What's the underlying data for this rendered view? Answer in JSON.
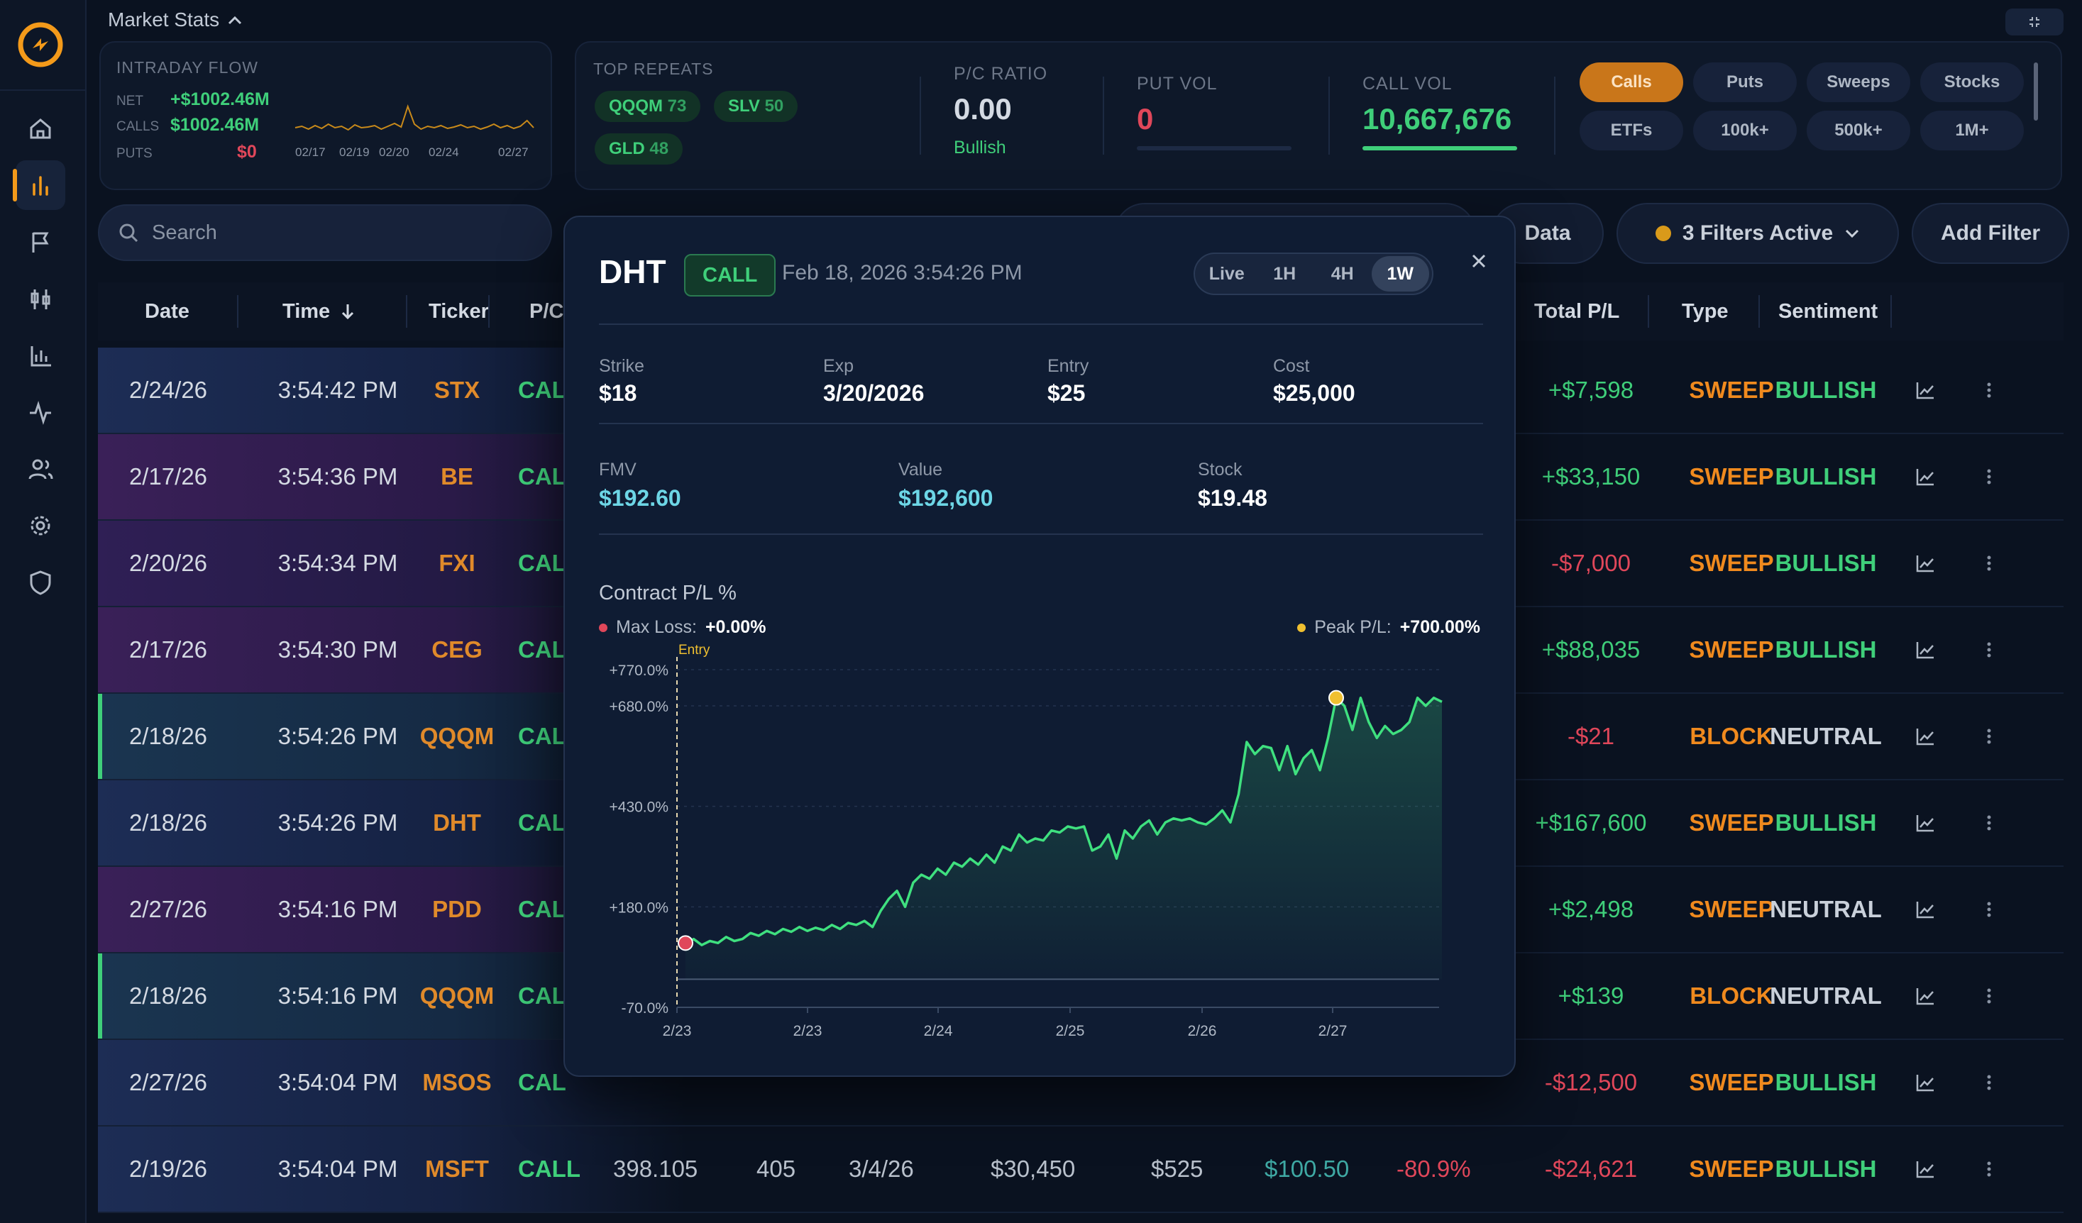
{
  "nav": {
    "items": [
      {
        "icon": "home-icon"
      },
      {
        "icon": "bar-chart-icon",
        "active": true
      },
      {
        "icon": "flag-icon"
      },
      {
        "icon": "candlestick-icon"
      },
      {
        "icon": "column-chart-icon"
      },
      {
        "icon": "activity-icon"
      },
      {
        "icon": "users-icon"
      },
      {
        "icon": "settings-icon"
      },
      {
        "icon": "shield-icon"
      }
    ]
  },
  "market_stats": {
    "title": "Market Stats",
    "intraday": {
      "title": "INTRADAY FLOW",
      "net_label": "NET",
      "net_value": "+$1002.46M",
      "calls_label": "CALLS",
      "calls_value": "$1002.46M",
      "puts_label": "PUTS",
      "puts_value": "$0",
      "spark_dates": [
        "02/17",
        "02/19",
        "02/20",
        "02/24",
        "02/27"
      ]
    },
    "top_repeats": {
      "title": "TOP REPEATS",
      "items": [
        {
          "ticker": "QQQM",
          "count": "73"
        },
        {
          "ticker": "SLV",
          "count": "50"
        },
        {
          "ticker": "GLD",
          "count": "48"
        }
      ]
    },
    "pc_ratio": {
      "label": "P/C RATIO",
      "value": "0.00",
      "sentiment": "Bullish"
    },
    "put_vol": {
      "label": "PUT VOL",
      "value": "0",
      "fill": 0
    },
    "call_vol": {
      "label": "CALL VOL",
      "value": "10,667,676",
      "fill": 1
    },
    "filters": [
      "Calls",
      "Puts",
      "Sweeps",
      "Stocks",
      "ETFs",
      "100k+",
      "500k+",
      "1M+"
    ],
    "active_filter": "Calls"
  },
  "toolbar": {
    "search_placeholder": "Search",
    "data_label": "Data",
    "filters_active_label": "3 Filters Active",
    "add_filter_label": "Add Filter"
  },
  "table": {
    "headers": {
      "date": "Date",
      "time": "Time",
      "ticker": "Ticker",
      "pc": "P/C",
      "total_pl": "Total P/L",
      "type": "Type",
      "sentiment": "Sentiment"
    },
    "rows": [
      {
        "date": "2/24/26",
        "time": "3:54:42 PM",
        "ticker": "STX",
        "pc": "CAL",
        "total_pl": "+$7,598",
        "pl_sign": "pos",
        "type": "SWEEP",
        "sentiment": "BULLISH"
      },
      {
        "date": "2/17/26",
        "time": "3:54:36 PM",
        "ticker": "BE",
        "pc": "CAL",
        "total_pl": "+$33,150",
        "pl_sign": "pos",
        "type": "SWEEP",
        "sentiment": "BULLISH"
      },
      {
        "date": "2/20/26",
        "time": "3:54:34 PM",
        "ticker": "FXI",
        "pc": "CAL",
        "total_pl": "-$7,000",
        "pl_sign": "neg",
        "type": "SWEEP",
        "sentiment": "BULLISH"
      },
      {
        "date": "2/17/26",
        "time": "3:54:30 PM",
        "ticker": "CEG",
        "pc": "CAL",
        "total_pl": "+$88,035",
        "pl_sign": "pos",
        "type": "SWEEP",
        "sentiment": "BULLISH"
      },
      {
        "date": "2/18/26",
        "time": "3:54:26 PM",
        "ticker": "QQQM",
        "pc": "CAL",
        "total_pl": "-$21",
        "pl_sign": "neg",
        "type": "BLOCK",
        "sentiment": "NEUTRAL"
      },
      {
        "date": "2/18/26",
        "time": "3:54:26 PM",
        "ticker": "DHT",
        "pc": "CAL",
        "total_pl": "+$167,600",
        "pl_sign": "pos",
        "type": "SWEEP",
        "sentiment": "BULLISH"
      },
      {
        "date": "2/27/26",
        "time": "3:54:16 PM",
        "ticker": "PDD",
        "pc": "CAL",
        "total_pl": "+$2,498",
        "pl_sign": "pos",
        "type": "SWEEP",
        "sentiment": "NEUTRAL"
      },
      {
        "date": "2/18/26",
        "time": "3:54:16 PM",
        "ticker": "QQQM",
        "pc": "CAL",
        "total_pl": "+$139",
        "pl_sign": "pos",
        "type": "BLOCK",
        "sentiment": "NEUTRAL"
      },
      {
        "date": "2/27/26",
        "time": "3:54:04 PM",
        "ticker": "MSOS",
        "pc": "CAL",
        "total_pl": "-$12,500",
        "pl_sign": "neg",
        "type": "SWEEP",
        "sentiment": "BULLISH"
      },
      {
        "date": "2/19/26",
        "time": "3:54:04 PM",
        "ticker": "MSFT",
        "pc": "CALL",
        "spot": "398.105",
        "strike": "405",
        "exp": "3/4/26",
        "premium": "$30,450",
        "entry": "$525",
        "fmv": "$100.50",
        "pct": "-80.9%",
        "total_pl": "-$24,621",
        "pl_sign": "neg",
        "type": "SWEEP",
        "sentiment": "BULLISH"
      }
    ]
  },
  "modal": {
    "ticker": "DHT",
    "badge": "CALL",
    "datetime": "Feb 18, 2026 3:54:26 PM",
    "timeframes": [
      "Live",
      "1H",
      "4H",
      "1W"
    ],
    "active_timeframe": "1W",
    "details": {
      "strike_label": "Strike",
      "strike": "$18",
      "exp_label": "Exp",
      "exp": "3/20/2026",
      "entry_label": "Entry",
      "entry": "$25",
      "cost_label": "Cost",
      "cost": "$25,000",
      "fmv_label": "FMV",
      "fmv": "$192.60",
      "value_label": "Value",
      "value": "$192,600",
      "stock_label": "Stock",
      "stock": "$19.48"
    },
    "chart_title": "Contract P/L %",
    "max_loss_label": "Max Loss:",
    "max_loss": "+0.00%",
    "peak_label": "Peak P/L:",
    "peak": "+700.00%"
  },
  "chart_data": {
    "type": "line",
    "title": "Contract P/L %",
    "ylim": [
      -70,
      770
    ],
    "y_ticks": [
      "+770.0%",
      "+680.0%",
      "+430.0%",
      "+180.0%",
      "-70.0%"
    ],
    "y_tick_values": [
      770,
      680,
      430,
      180,
      -70
    ],
    "x_ticks": [
      "2/23",
      "2/23",
      "2/24",
      "2/25",
      "2/26",
      "2/27"
    ],
    "entry_label": "Entry",
    "colors": {
      "line": "#3fe07f",
      "entry_point": "#e0475a",
      "peak_point": "#f0c030",
      "entry_line": "#f0c030"
    },
    "series": [
      {
        "values": [
          90,
          100,
          85,
          95,
          90,
          105,
          95,
          100,
          115,
          108,
          120,
          112,
          125,
          118,
          130,
          120,
          128,
          122,
          135,
          125,
          140,
          135,
          145,
          130,
          170,
          200,
          220,
          180,
          240,
          260,
          250,
          275,
          260,
          290,
          280,
          300,
          285,
          310,
          290,
          330,
          320,
          360,
          340,
          350,
          345,
          370,
          365,
          380,
          375,
          380,
          320,
          330,
          360,
          300,
          370,
          350,
          380,
          395,
          360,
          390,
          400,
          395,
          400,
          390,
          385,
          400,
          420,
          390,
          460,
          590,
          560,
          580,
          575,
          520,
          580,
          510,
          550,
          570,
          520,
          600,
          700,
          680,
          620,
          700,
          640,
          600,
          630,
          610,
          620,
          640,
          700,
          680,
          700,
          690
        ]
      }
    ]
  }
}
